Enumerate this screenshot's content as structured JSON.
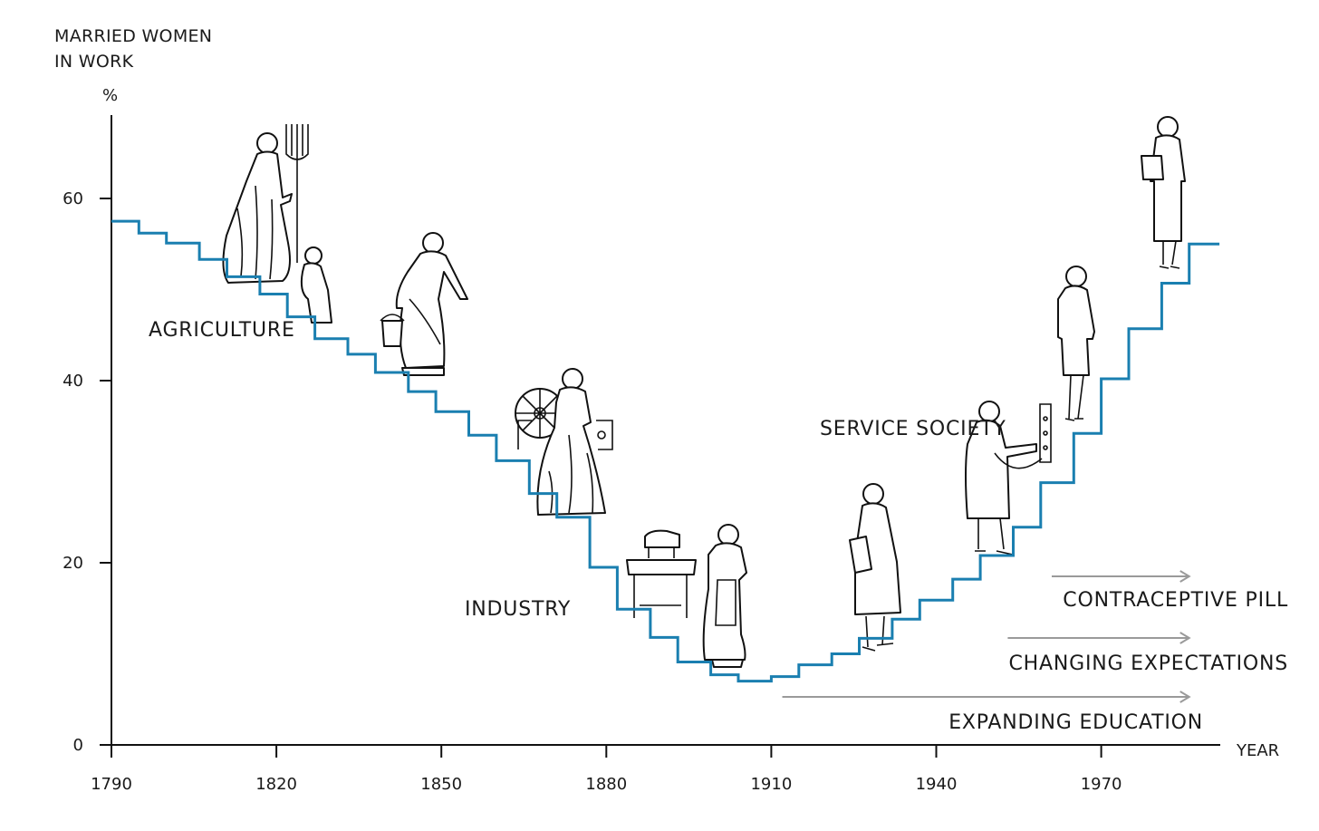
{
  "chart_data": {
    "type": "line",
    "step": true,
    "ylabel": [
      "MARRIED WOMEN",
      "IN WORK"
    ],
    "yunit": "%",
    "xlabel": "YEAR",
    "ylim": [
      0,
      68
    ],
    "xlim": [
      1790,
      1990
    ],
    "yticks": [
      0,
      20,
      40,
      60
    ],
    "xticks": [
      1790,
      1820,
      1850,
      1880,
      1910,
      1940,
      1970
    ],
    "series": [
      {
        "color": "#1a7fb0",
        "x": [
          1790,
          1795,
          1800,
          1806,
          1811,
          1817,
          1822,
          1827,
          1833,
          1838,
          1844,
          1849,
          1855,
          1860,
          1866,
          1871,
          1877,
          1882,
          1888,
          1893,
          1899,
          1904,
          1910,
          1915,
          1921,
          1926,
          1932,
          1937,
          1943,
          1948,
          1954,
          1959,
          1965,
          1970,
          1975,
          1981,
          1986
        ],
        "y": [
          57.5,
          56.2,
          55.1,
          53.3,
          51.4,
          49.5,
          47.0,
          44.6,
          42.9,
          40.9,
          38.8,
          36.6,
          34.0,
          31.2,
          27.6,
          25.0,
          19.5,
          14.9,
          11.8,
          9.1,
          7.7,
          7.0,
          7.5,
          8.8,
          10.0,
          11.7,
          13.8,
          15.9,
          18.2,
          20.8,
          23.9,
          28.8,
          34.2,
          40.2,
          45.7,
          50.7,
          55.0
        ]
      }
    ],
    "annotations": {
      "eras": [
        "AGRICULTURE",
        "INDUSTRY",
        "SERVICE SOCIETY"
      ],
      "drivers": [
        {
          "label": "CONTRACEPTIVE PILL",
          "from": 1961,
          "to": 1986
        },
        {
          "label": "CHANGING EXPECTATIONS",
          "from": 1953,
          "to": 1986
        },
        {
          "label": "EXPANDING EDUCATION",
          "from": 1912,
          "to": 1986
        }
      ]
    },
    "colors": {
      "step_line": "#1a7fb0",
      "arrow": "#9a9a9a",
      "text": "#1a1a1a"
    },
    "illustrations": [
      "woman-with-pitchfork-and-child",
      "milkmaid-with-pail",
      "woman-at-spinning-wheel",
      "woman-by-sewing-machine",
      "woman-with-folder",
      "switchboard-operator",
      "woman-in-suit",
      "woman-with-handbag"
    ]
  }
}
